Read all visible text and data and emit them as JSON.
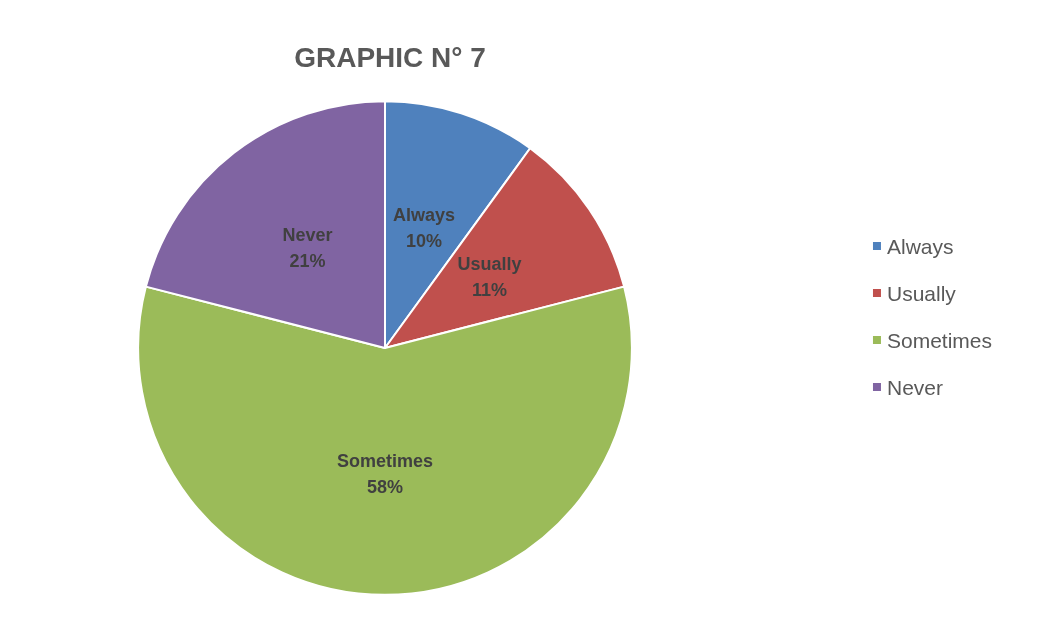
{
  "chart_data": {
    "type": "pie",
    "title": "GRAPHIC N° 7",
    "categories": [
      "Always",
      "Usually",
      "Sometimes",
      "Never"
    ],
    "values": [
      10,
      11,
      58,
      21
    ],
    "value_labels": [
      "10%",
      "11%",
      "58%",
      "21%"
    ],
    "colors": [
      "#4f81bd",
      "#c0504d",
      "#9bbb59",
      "#8064a2"
    ],
    "legend": "right"
  }
}
